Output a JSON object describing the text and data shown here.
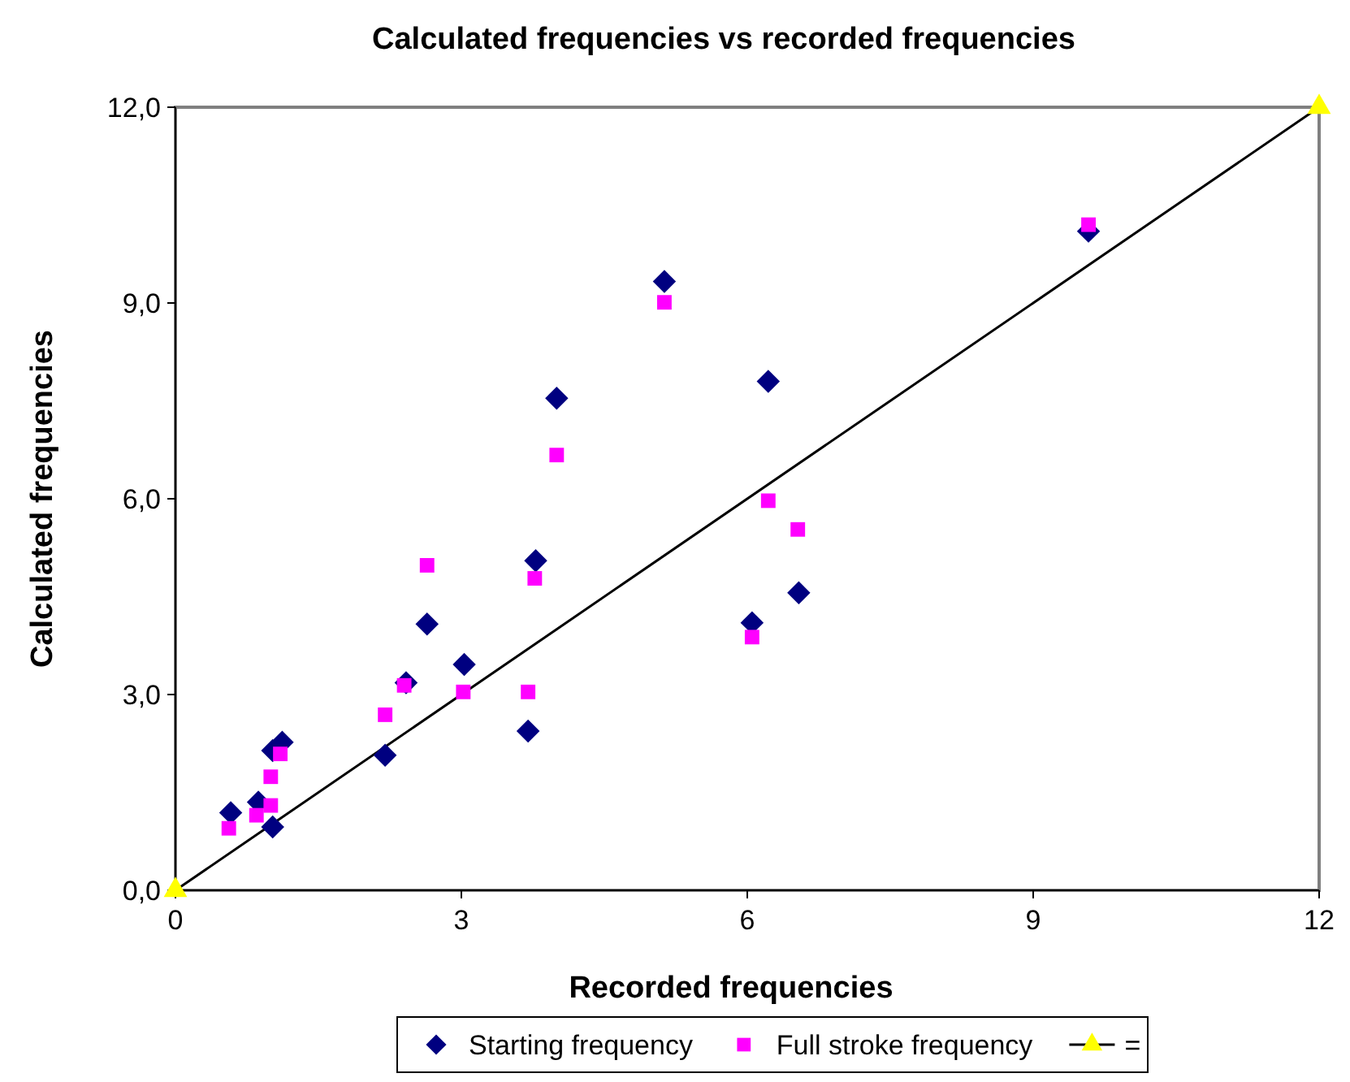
{
  "chart_data": {
    "type": "scatter",
    "title": "Calculated frequencies vs recorded frequencies",
    "xlabel": "Recorded frequencies",
    "ylabel": "Calculated frequencies",
    "xlim": [
      0,
      12
    ],
    "xticks": [
      0,
      3,
      6,
      9,
      12
    ],
    "ylim": [
      0,
      12
    ],
    "yticks": [
      {
        "value": 0,
        "label": "0,0"
      },
      {
        "value": 3,
        "label": "3,0"
      },
      {
        "value": 6,
        "label": "6,0"
      },
      {
        "value": 9,
        "label": "9,0"
      },
      {
        "value": 12,
        "label": "12,0"
      }
    ],
    "grid": false,
    "legend": "bottom",
    "series": [
      {
        "name": "Starting frequency",
        "color": "#000080",
        "marker": "diamond",
        "x": [
          0.58,
          0.87,
          1.02,
          1.02,
          1.12,
          2.2,
          2.42,
          2.64,
          3.03,
          3.7,
          3.78,
          4.0,
          5.13,
          6.22,
          6.05,
          6.54,
          9.58
        ],
        "values": [
          1.19,
          1.35,
          0.97,
          2.14,
          2.27,
          2.07,
          3.18,
          4.08,
          3.46,
          2.44,
          5.05,
          7.54,
          9.33,
          7.8,
          4.1,
          4.56,
          10.1
        ]
      },
      {
        "name": "Full stroke frequency",
        "color": "#ff00ff",
        "marker": "square",
        "x": [
          0.56,
          0.85,
          1.0,
          1.0,
          1.1,
          2.2,
          2.4,
          2.64,
          3.02,
          3.7,
          3.77,
          4.0,
          5.13,
          6.05,
          6.22,
          6.53,
          9.58
        ],
        "values": [
          0.95,
          1.15,
          1.3,
          1.74,
          2.09,
          2.69,
          3.14,
          4.98,
          3.04,
          3.04,
          4.78,
          6.67,
          9.01,
          3.88,
          5.97,
          5.53,
          10.2
        ]
      },
      {
        "name": "=",
        "type": "line",
        "color": "#000000",
        "marker": "triangle",
        "colors": [
          "#ffff00",
          "#ffff00"
        ],
        "x": [
          0,
          12
        ],
        "values": [
          0,
          12
        ]
      }
    ]
  }
}
